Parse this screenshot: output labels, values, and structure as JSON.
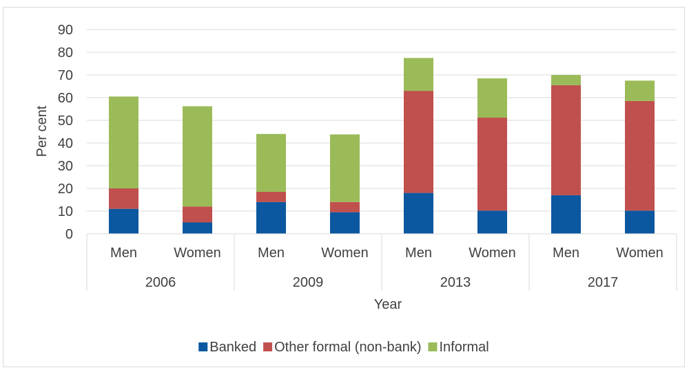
{
  "chart_data": {
    "type": "bar",
    "stacked": true,
    "title": "",
    "xlabel": "Year",
    "ylabel": "Per cent",
    "ylim": [
      0,
      90
    ],
    "yticks": [
      0,
      10,
      20,
      30,
      40,
      50,
      60,
      70,
      80,
      90
    ],
    "grid": true,
    "legend_position": "bottom",
    "groups": [
      "2006",
      "2009",
      "2013",
      "2017"
    ],
    "categories": [
      "Men",
      "Women",
      "Men",
      "Women",
      "Men",
      "Women",
      "Men",
      "Women"
    ],
    "series": [
      {
        "name": "Banked",
        "color": "#0b57a0",
        "values": [
          11,
          5,
          14,
          9.5,
          18,
          10.2,
          17,
          10.2
        ]
      },
      {
        "name": "Other formal (non-bank)",
        "color": "#c0504d",
        "values": [
          9,
          7,
          4.5,
          4.5,
          45,
          41,
          48.5,
          48.3
        ]
      },
      {
        "name": "Informal",
        "color": "#9bbb59",
        "values": [
          40.5,
          44.2,
          25.5,
          29.8,
          14.5,
          17.3,
          4.5,
          9
        ]
      }
    ]
  }
}
